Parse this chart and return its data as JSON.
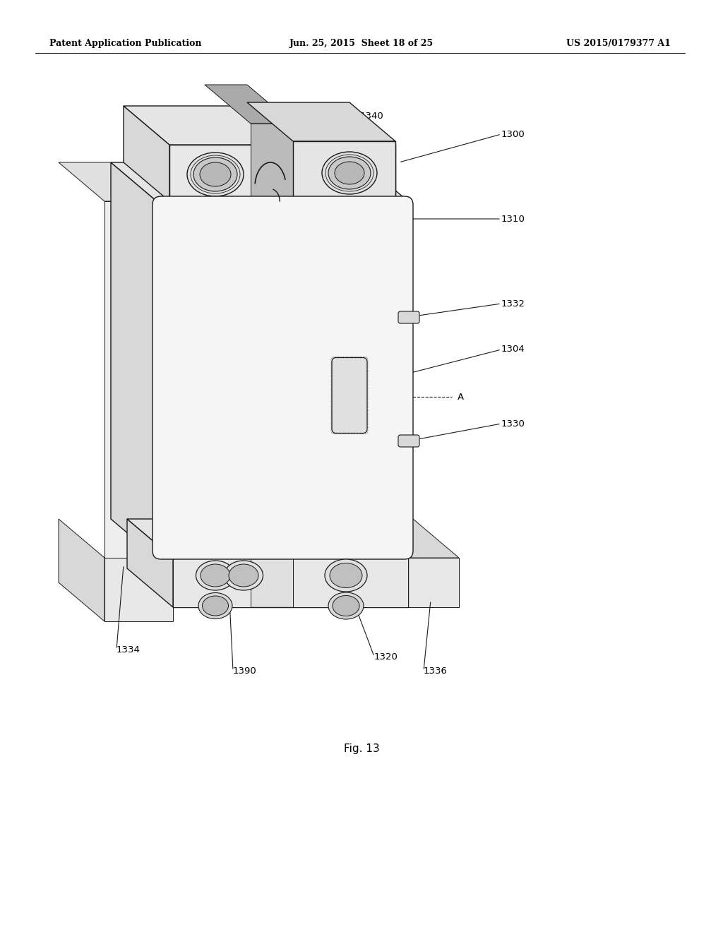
{
  "bg_color": "#ffffff",
  "header_left": "Patent Application Publication",
  "header_center": "Jun. 25, 2015  Sheet 18 of 25",
  "header_right": "US 2015/0179377 A1",
  "figure_label": "Fig. 13",
  "line_color": "#1a1a1a",
  "fill_front": "#f2f2f2",
  "fill_side": "#d8d8d8",
  "fill_top": "#e5e5e5",
  "fill_dark": "#c8c8c8",
  "fill_screw": "#b0b0b0"
}
